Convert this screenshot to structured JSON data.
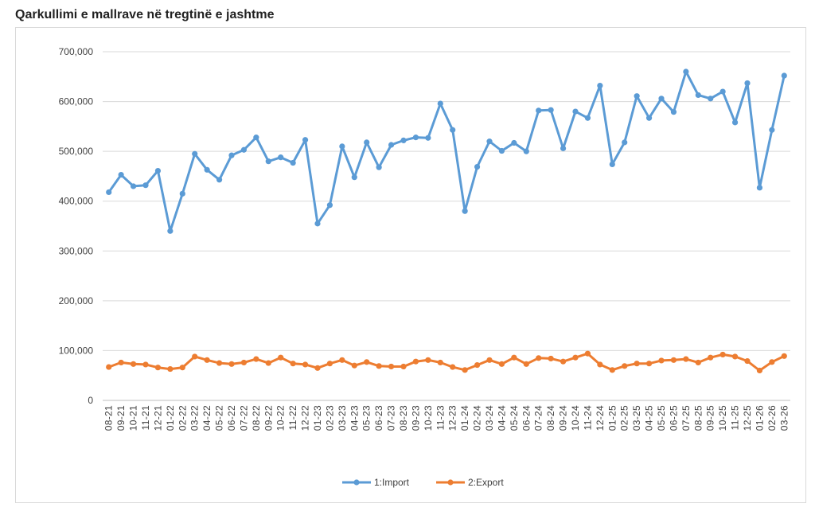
{
  "title": "Qarkullimi e mallrave në tregtinë e jashtme",
  "chart_data": {
    "type": "line",
    "title": "Qarkullimi e mallrave në tregtinë e jashtme",
    "xlabel": "",
    "ylabel": "",
    "ylim": [
      0,
      700000
    ],
    "y_ticks": [
      0,
      100000,
      200000,
      300000,
      400000,
      500000,
      600000,
      700000
    ],
    "y_tick_labels": [
      "0",
      "100,000",
      "200,000",
      "300,000",
      "400,000",
      "500,000",
      "600,000",
      "700,000"
    ],
    "grid": true,
    "legend_position": "bottom-center",
    "categories": [
      "08-21",
      "09-21",
      "10-21",
      "11-21",
      "12-21",
      "01-22",
      "02-22",
      "03-22",
      "04-22",
      "05-22",
      "06-22",
      "07-22",
      "08-22",
      "09-22",
      "10-22",
      "11-22",
      "12-22",
      "01-23",
      "02-23",
      "03-23",
      "04-23",
      "05-23",
      "06-23",
      "07-23",
      "08-23",
      "09-23",
      "10-23",
      "11-23",
      "12-23",
      "01-24",
      "02-24",
      "03-24",
      "04-24",
      "05-24",
      "06-24",
      "07-24",
      "08-24",
      "09-24",
      "10-24",
      "11-24",
      "12-24",
      "01-25",
      "02-25",
      "03-25",
      "04-25",
      "05-25",
      "06-25",
      "07-25",
      "08-25",
      "09-25",
      "10-25",
      "11-25",
      "12-25",
      "01-26",
      "02-26",
      "03-26"
    ],
    "series": [
      {
        "name": "1:Import",
        "color": "#5b9bd5",
        "values": [
          418000,
          453000,
          430000,
          432000,
          461000,
          340000,
          415000,
          495000,
          463000,
          443000,
          492000,
          503000,
          528000,
          480000,
          488000,
          477000,
          523000,
          355000,
          392000,
          510000,
          448000,
          518000,
          468000,
          513000,
          522000,
          528000,
          527000,
          596000,
          543000,
          380000,
          469000,
          520000,
          501000,
          517000,
          500000,
          582000,
          583000,
          506000,
          580000,
          567000,
          632000,
          474000,
          518000,
          611000,
          567000,
          606000,
          579000,
          660000,
          613000,
          606000,
          620000,
          558000,
          637000,
          427000,
          543000,
          652000
        ]
      },
      {
        "name": "2:Export",
        "color": "#ed7d31",
        "values": [
          67000,
          76000,
          73000,
          72000,
          66000,
          63000,
          66000,
          88000,
          81000,
          75000,
          73000,
          76000,
          83000,
          75000,
          86000,
          74000,
          72000,
          65000,
          74000,
          81000,
          70000,
          77000,
          69000,
          68000,
          68000,
          78000,
          81000,
          76000,
          67000,
          61000,
          71000,
          81000,
          73000,
          86000,
          73000,
          85000,
          84000,
          78000,
          86000,
          94000,
          72000,
          61000,
          69000,
          74000,
          74000,
          80000,
          81000,
          83000,
          76000,
          86000,
          92000,
          88000,
          79000,
          60000,
          77000,
          89000
        ]
      }
    ]
  }
}
